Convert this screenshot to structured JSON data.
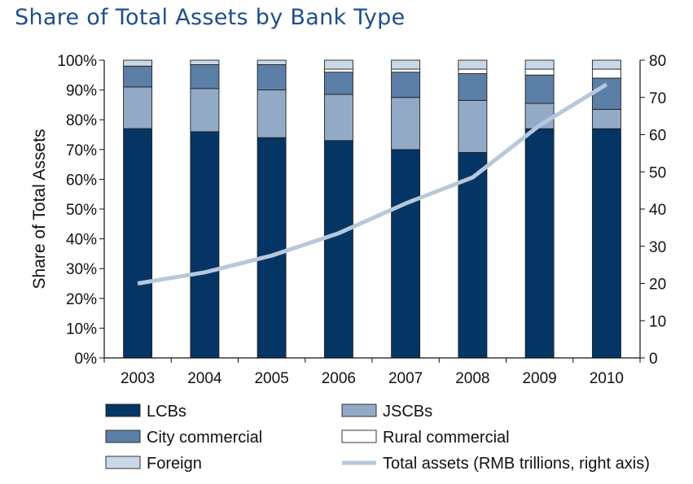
{
  "chart_data": {
    "type": "bar",
    "title": "Share of Total Assets by Bank Type",
    "ylabel": "Share of Total Assets",
    "xlabel": "",
    "ylim": [
      0,
      100
    ],
    "y2lim": [
      0,
      80
    ],
    "categories": [
      "2003",
      "2004",
      "2005",
      "2006",
      "2007",
      "2008",
      "2009",
      "2010"
    ],
    "y_ticks": [
      "0%",
      "10%",
      "20%",
      "30%",
      "40%",
      "50%",
      "60%",
      "70%",
      "80%",
      "90%",
      "100%"
    ],
    "y_tick_values": [
      0,
      10,
      20,
      30,
      40,
      50,
      60,
      70,
      80,
      90,
      100
    ],
    "y2_ticks": [
      "0",
      "10",
      "20",
      "30",
      "40",
      "50",
      "60",
      "70",
      "80"
    ],
    "y2_tick_values": [
      0,
      10,
      20,
      30,
      40,
      50,
      60,
      70,
      80
    ],
    "stacked": true,
    "series": [
      {
        "name": "LCBs",
        "type": "bar",
        "color": "#043565",
        "values": [
          77,
          76,
          74,
          73,
          70,
          69,
          77,
          77
        ]
      },
      {
        "name": "JSCBs",
        "type": "bar",
        "color": "#93aac7",
        "values": [
          14,
          14.5,
          16,
          15.5,
          17.5,
          17.5,
          8.5,
          6.5
        ]
      },
      {
        "name": "City commercial",
        "type": "bar",
        "color": "#5b7fa6",
        "values": [
          7,
          8,
          8.5,
          7.5,
          8.5,
          9,
          9.5,
          10.5
        ]
      },
      {
        "name": "Rural commercial",
        "type": "bar",
        "color": "#ffffff",
        "values": [
          0,
          0,
          0,
          1,
          1,
          1.5,
          2,
          3
        ]
      },
      {
        "name": "Foreign",
        "type": "bar",
        "color": "#c9d8e7",
        "values": [
          2,
          1.5,
          1.5,
          3,
          3,
          3,
          3,
          3
        ]
      },
      {
        "name": "Total assets (RMB trillions, right axis)",
        "type": "line",
        "axis": "right",
        "color": "#b6c8da",
        "values": [
          20,
          23,
          27.5,
          33.5,
          41.5,
          48.5,
          62.5,
          73.5
        ]
      }
    ],
    "legend": {
      "placement": "bottom",
      "items": [
        {
          "label": "LCBs",
          "swatch": "box",
          "color": "#043565"
        },
        {
          "label": "JSCBs",
          "swatch": "box",
          "color": "#93aac7"
        },
        {
          "label": "City commercial",
          "swatch": "box",
          "color": "#5b7fa6"
        },
        {
          "label": "Rural commercial",
          "swatch": "box",
          "color": "#ffffff"
        },
        {
          "label": "Foreign",
          "swatch": "box",
          "color": "#c9d8e7"
        },
        {
          "label": "Total assets (RMB trillions, right axis)",
          "swatch": "line",
          "color": "#b6c8da"
        }
      ]
    },
    "grid": false
  }
}
